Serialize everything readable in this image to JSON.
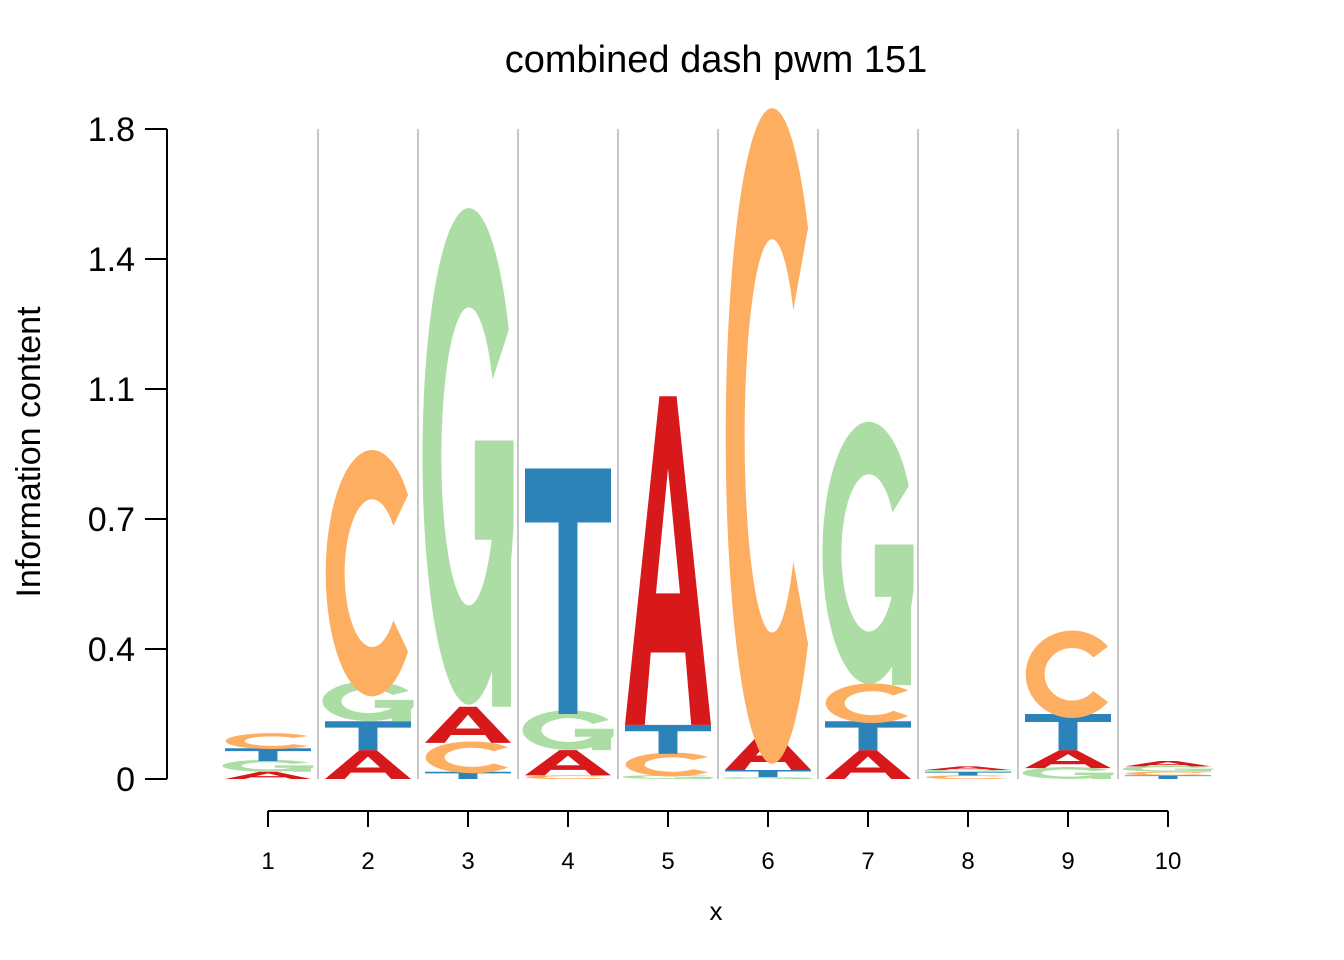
{
  "chart_data": {
    "type": "sequence-logo",
    "title": "combined dash pwm 151",
    "xlabel": "x",
    "ylabel": "Information content",
    "yticks": [
      "0",
      "0.4",
      "0.7",
      "1.1",
      "1.4",
      "1.8"
    ],
    "ytick_values": [
      0,
      0.36,
      0.72,
      1.08,
      1.44,
      1.8
    ],
    "ylim": [
      0,
      1.8
    ],
    "grid": "vertical",
    "colors": {
      "A": "#d7191c",
      "C": "#fdae61",
      "G": "#abdda4",
      "T": "#2b83ba"
    },
    "positions": [
      {
        "x": "1",
        "letters": [
          {
            "base": "A",
            "value": 0.02
          },
          {
            "base": "G",
            "value": 0.03
          },
          {
            "base": "T",
            "value": 0.035
          },
          {
            "base": "C",
            "value": 0.04
          }
        ]
      },
      {
        "x": "2",
        "letters": [
          {
            "base": "A",
            "value": 0.08
          },
          {
            "base": "T",
            "value": 0.08
          },
          {
            "base": "G",
            "value": 0.1
          },
          {
            "base": "C",
            "value": 0.62
          }
        ]
      },
      {
        "x": "3",
        "letters": [
          {
            "base": "T",
            "value": 0.02
          },
          {
            "base": "C",
            "value": 0.08
          },
          {
            "base": "A",
            "value": 0.1
          },
          {
            "base": "G",
            "value": 1.25
          }
        ]
      },
      {
        "x": "4",
        "letters": [
          {
            "base": "C",
            "value": 0.01
          },
          {
            "base": "A",
            "value": 0.07
          },
          {
            "base": "G",
            "value": 0.1
          },
          {
            "base": "T",
            "value": 0.68
          }
        ]
      },
      {
        "x": "5",
        "letters": [
          {
            "base": "G",
            "value": 0.01
          },
          {
            "base": "C",
            "value": 0.06
          },
          {
            "base": "T",
            "value": 0.08
          },
          {
            "base": "A",
            "value": 0.91
          }
        ]
      },
      {
        "x": "6",
        "letters": [
          {
            "base": "G",
            "value": 0.005
          },
          {
            "base": "T",
            "value": 0.02
          },
          {
            "base": "A",
            "value": 0.1
          },
          {
            "base": "C",
            "value": 1.65
          }
        ]
      },
      {
        "x": "7",
        "letters": [
          {
            "base": "A",
            "value": 0.08
          },
          {
            "base": "T",
            "value": 0.08
          },
          {
            "base": "C",
            "value": 0.1
          },
          {
            "base": "G",
            "value": 0.66
          }
        ]
      },
      {
        "x": "8",
        "letters": [
          {
            "base": "C",
            "value": 0.01
          },
          {
            "base": "T",
            "value": 0.01
          },
          {
            "base": "G",
            "value": 0.005
          },
          {
            "base": "A",
            "value": 0.01
          }
        ]
      },
      {
        "x": "9",
        "letters": [
          {
            "base": "G",
            "value": 0.03
          },
          {
            "base": "A",
            "value": 0.05
          },
          {
            "base": "T",
            "value": 0.1
          },
          {
            "base": "C",
            "value": 0.22
          }
        ]
      },
      {
        "x": "10",
        "letters": [
          {
            "base": "T",
            "value": 0.01
          },
          {
            "base": "C",
            "value": 0.01
          },
          {
            "base": "G",
            "value": 0.015
          },
          {
            "base": "A",
            "value": 0.015
          }
        ]
      }
    ]
  }
}
